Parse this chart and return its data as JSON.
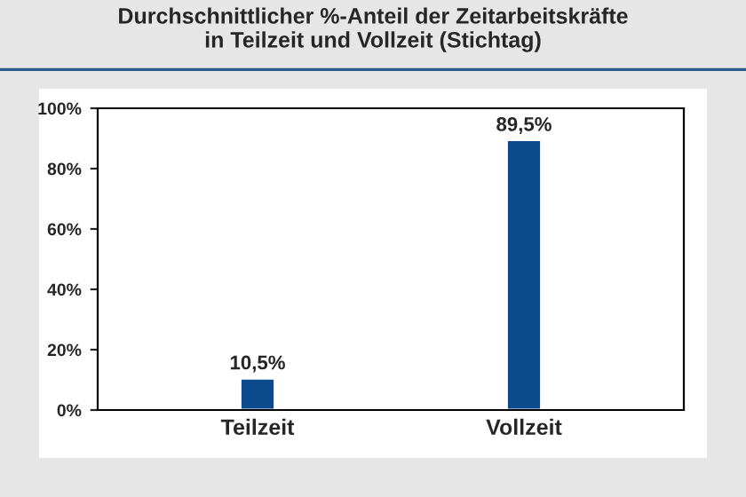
{
  "chart_data": {
    "type": "bar",
    "title": "Durchschnittlicher %-Anteil der Zeitarbeitskräfte\nin Teilzeit und Vollzeit (Stichtag)",
    "categories": [
      "Teilzeit",
      "Vollzeit"
    ],
    "values": [
      10.5,
      89.5
    ],
    "value_labels": [
      "10,5%",
      "89,5%"
    ],
    "color": "#0b4a8c",
    "ylim": [
      0,
      100
    ],
    "yticks": [
      {
        "value": 0,
        "label": "0%"
      },
      {
        "value": 20,
        "label": "20%"
      },
      {
        "value": 40,
        "label": "40%"
      },
      {
        "value": 60,
        "label": "60%"
      },
      {
        "value": 80,
        "label": "80%"
      },
      {
        "value": 100,
        "label": "100%"
      }
    ],
    "grid": false
  }
}
